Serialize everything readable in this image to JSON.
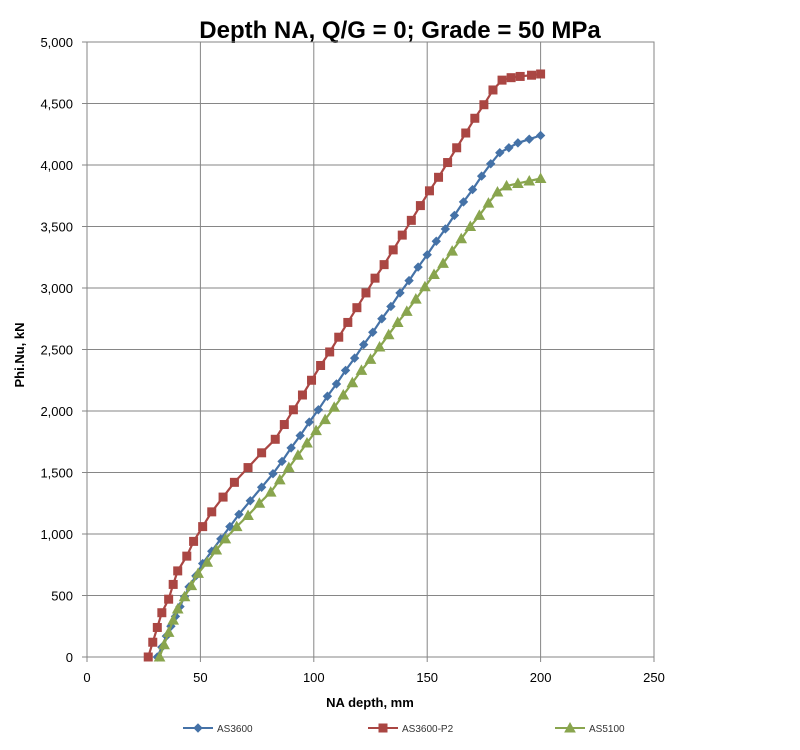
{
  "chart_data": {
    "type": "line",
    "title": "Depth NA, Q/G = 0; Grade = 50 MPa",
    "xlabel": "NA depth, mm",
    "ylabel": "Phi.Nu, kN",
    "xlim": [
      0,
      250
    ],
    "ylim": [
      0,
      5000
    ],
    "x_ticks": [
      0,
      50,
      100,
      150,
      200,
      250
    ],
    "y_ticks": [
      0,
      500,
      1000,
      1500,
      2000,
      2500,
      3000,
      3500,
      4000,
      4500,
      5000
    ],
    "x_tick_labels": [
      "0",
      "50",
      "100",
      "150",
      "200",
      "250"
    ],
    "y_tick_labels": [
      "0",
      "500",
      "1,000",
      "1,500",
      "2,000",
      "2,500",
      "3,000",
      "3,500",
      "4,000",
      "4,500",
      "5,000"
    ],
    "grid": true,
    "legend_position": "bottom",
    "series": [
      {
        "name": "AS3600",
        "color": "#4572a7",
        "marker": "diamond",
        "x": [
          31,
          33,
          35,
          37,
          39,
          41,
          43,
          45,
          48,
          51,
          55,
          59,
          63,
          67,
          72,
          77,
          82,
          86,
          90,
          94,
          98,
          102,
          106,
          110,
          114,
          118,
          122,
          126,
          130,
          134,
          138,
          142,
          146,
          150,
          154,
          158,
          162,
          166,
          170,
          174,
          178,
          182,
          186,
          190,
          195,
          200
        ],
        "y": [
          0,
          80,
          170,
          250,
          330,
          410,
          490,
          570,
          660,
          760,
          860,
          960,
          1060,
          1160,
          1270,
          1380,
          1490,
          1590,
          1700,
          1800,
          1910,
          2010,
          2120,
          2220,
          2330,
          2430,
          2540,
          2640,
          2750,
          2850,
          2960,
          3060,
          3170,
          3270,
          3380,
          3480,
          3590,
          3700,
          3800,
          3910,
          4010,
          4100,
          4140,
          4180,
          4210,
          4240
        ]
      },
      {
        "name": "AS3600-P2",
        "color": "#aa4643",
        "marker": "square",
        "x": [
          27,
          29,
          31,
          33,
          36,
          38,
          40,
          44,
          47,
          51,
          55,
          60,
          65,
          71,
          77,
          83,
          87,
          91,
          95,
          99,
          103,
          107,
          111,
          115,
          119,
          123,
          127,
          131,
          135,
          139,
          143,
          147,
          151,
          155,
          159,
          163,
          167,
          171,
          175,
          179,
          183,
          187,
          191,
          196,
          200
        ],
        "y": [
          0,
          120,
          240,
          360,
          470,
          590,
          700,
          820,
          940,
          1060,
          1180,
          1300,
          1420,
          1540,
          1660,
          1770,
          1890,
          2010,
          2130,
          2250,
          2370,
          2480,
          2600,
          2720,
          2840,
          2960,
          3080,
          3190,
          3310,
          3430,
          3550,
          3670,
          3790,
          3900,
          4020,
          4140,
          4260,
          4380,
          4490,
          4610,
          4690,
          4710,
          4720,
          4730,
          4740
        ]
      },
      {
        "name": "AS5100",
        "color": "#89a54e",
        "marker": "triangle",
        "x": [
          32,
          34,
          36,
          38,
          40,
          43,
          46,
          49,
          53,
          57,
          61,
          66,
          71,
          76,
          81,
          85,
          89,
          93,
          97,
          101,
          105,
          109,
          113,
          117,
          121,
          125,
          129,
          133,
          137,
          141,
          145,
          149,
          153,
          157,
          161,
          165,
          169,
          173,
          177,
          181,
          185,
          190,
          195,
          200
        ],
        "y": [
          0,
          100,
          200,
          300,
          390,
          490,
          580,
          680,
          770,
          870,
          960,
          1060,
          1150,
          1250,
          1340,
          1440,
          1540,
          1640,
          1740,
          1840,
          1930,
          2030,
          2130,
          2230,
          2330,
          2420,
          2520,
          2620,
          2720,
          2810,
          2910,
          3010,
          3110,
          3200,
          3300,
          3400,
          3500,
          3590,
          3690,
          3780,
          3830,
          3850,
          3870,
          3890
        ]
      }
    ]
  }
}
